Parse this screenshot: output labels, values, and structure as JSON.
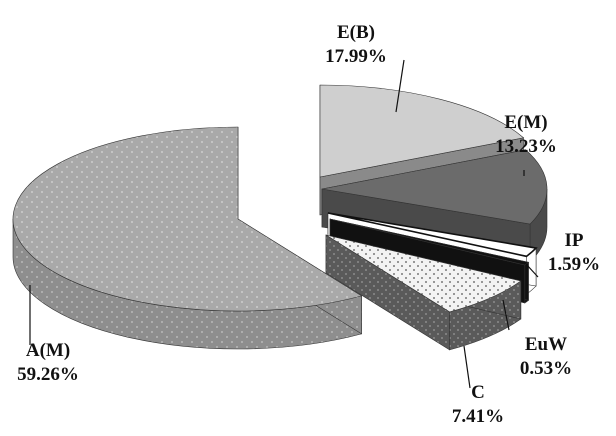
{
  "chart_data": {
    "type": "pie",
    "variant": "3d-exploded",
    "title": "",
    "slices": [
      {
        "label": "E(B)",
        "value_label": "17.99%",
        "value": 17.99,
        "color": "#cfcfcf",
        "side": "#8a8a8a",
        "pattern": "none"
      },
      {
        "label": "E(M)",
        "value_label": "13.23%",
        "value": 13.23,
        "color": "#6b6b6b",
        "side": "#4a4a4a",
        "pattern": "none"
      },
      {
        "label": "IP",
        "value_label": "1.59%",
        "value": 1.59,
        "color": "#ffffff",
        "side": "#ffffff",
        "pattern": "white-with-black-edge"
      },
      {
        "label": "EuW",
        "value_label": "0.53%",
        "value": 0.53,
        "color": "#111111",
        "side": "#111111",
        "pattern": "none"
      },
      {
        "label": "C",
        "value_label": "7.41%",
        "value": 7.41,
        "color": "#f1f1f1",
        "side": "#5a5a5a",
        "pattern": "dots"
      },
      {
        "label": "A(M)",
        "value_label": "59.26%",
        "value": 59.26,
        "color": "#a9a9a9",
        "side": "#8e8e8e",
        "pattern": "light-dots"
      }
    ],
    "legend": "none",
    "labels": "outside-with-leader-lines"
  }
}
